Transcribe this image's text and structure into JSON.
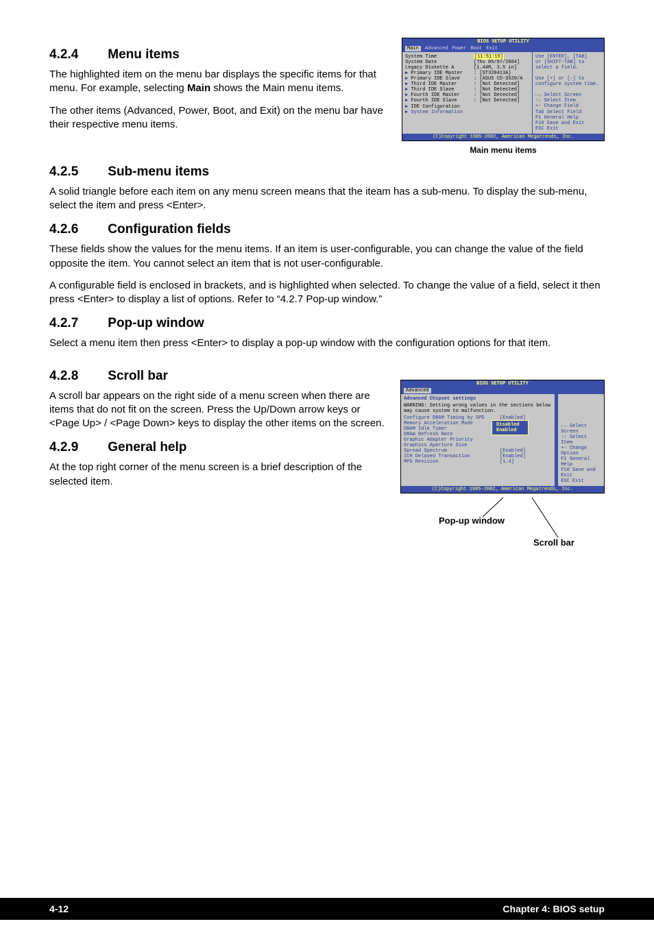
{
  "sections": {
    "s4_2_4": {
      "num": "4.2.4",
      "title": "Menu items",
      "p1": "The highlighted item on the menu bar  displays the specific items for that menu. For example, selecting ",
      "p1b": "Main",
      "p1c": " shows the Main menu items.",
      "p2": "The other items (Advanced, Power, Boot, and Exit) on the menu bar have their respective menu items."
    },
    "s4_2_5": {
      "num": "4.2.5",
      "title": "Sub-menu items",
      "p": "A solid triangle before each item on any menu screen means that the iteam has a sub-menu. To display the sub-menu, select the item and press <Enter>."
    },
    "s4_2_6": {
      "num": "4.2.6",
      "title": "Configuration fields",
      "p1": "These fields show the values for the menu items. If an item is user-configurable, you can change the value of the field opposite the item. You cannot select an item that is not user-configurable.",
      "p2": "A configurable field is enclosed in brackets, and is highlighted when selected. To change the value of a field, select it then press <Enter> to display a list of options. Refer to “4.2.7 Pop-up window.”"
    },
    "s4_2_7": {
      "num": "4.2.7",
      "title": "Pop-up window",
      "p": "Select a menu item then press <Enter> to display a pop-up window with the configuration options for that item."
    },
    "s4_2_8": {
      "num": "4.2.8",
      "title": "Scroll bar",
      "p": "A scroll bar appears on the right side of a menu screen when there are items that do not fit on the screen. Press the Up/Down arrow keys or <Page Up> / <Page Down> keys to display the other items on the screen."
    },
    "s4_2_9": {
      "num": "4.2.9",
      "title": "General help",
      "p": "At the top right corner of the menu screen is a brief description of the selected item."
    }
  },
  "bios1": {
    "title": "BIOS SETUP UTILITY",
    "tabs": [
      "Main",
      "Advanced",
      "Power",
      "Boot",
      "Exit"
    ],
    "active_tab": "Main",
    "left": [
      {
        "k": "System Time",
        "v": "[11:51:19]",
        "hl": true
      },
      {
        "k": "System Date",
        "v": "[Thu 05/07/2004]"
      },
      {
        "k": "Legacy Diskette A",
        "v": "[1.44M, 3.5 in]"
      },
      {
        "k": "Primary IDE Master",
        "v": ": [ST320413A]",
        "arrow": true
      },
      {
        "k": "Primary IDE Slave",
        "v": ": [ASUS CD-S520/A",
        "arrow": true
      },
      {
        "k": "Third IDE Master",
        "v": ": [Not Detected]",
        "arrow": true
      },
      {
        "k": "Third IDE Slave",
        "v": ": [Not Detected]",
        "arrow": true
      },
      {
        "k": "Fourth IDE Master",
        "v": ": [Not Detected]",
        "arrow": true
      },
      {
        "k": "Fourth IDE Slave",
        "v": ": [Not Detected]",
        "arrow": true
      },
      {
        "k": "IDE Configuration",
        "v": "",
        "arrow": true
      },
      {
        "k": "System Information",
        "v": "",
        "arrow": true,
        "blue": true
      }
    ],
    "right_top": [
      "Use [ENTER], [TAB]",
      "or [SHIFT-TAB] to",
      "select a field.",
      "",
      "Use [+] or [-] to",
      "configure system time."
    ],
    "right_nav": [
      "←→   Select Screen",
      "↑↓   Select Item",
      "+-   Change Field",
      "Tab  Select Field",
      "F1   General Help",
      "F10  Save and Exit",
      "ESC  Exit"
    ],
    "footer": "(C)Copyright 1985-2002, American Megatrends, Inc.",
    "caption": "Main menu items"
  },
  "bios2": {
    "title": "BIOS SETUP UTILITY",
    "tab": "Advanced",
    "header": "Advanced Chipset settings",
    "warn": "WARNING: Setting wrong values in the sections below may cause system to malfunction.",
    "rows": [
      {
        "k": "Configure DRAM Timing by SPD",
        "v": "[Enabled]"
      },
      {
        "k": "Memory Acceleration Mode",
        "v": "[Auto]"
      },
      {
        "k": "DRAM Idle Timer",
        "v": ""
      },
      {
        "k": "DRAm Refresh Rate",
        "v": ""
      },
      {
        "k": "Graphic Adapter Priority",
        "v": ""
      },
      {
        "k": "Graphics Aperture Size",
        "v": ""
      },
      {
        "k": "Spread Spectrum",
        "v": "[Enabled]"
      },
      {
        "k": "ICH Delayed Transaction",
        "v": "[Enabled]"
      },
      {
        "k": "MPS Revision",
        "v": "[1.4]"
      }
    ],
    "popup": [
      "Disabled",
      "Enabled"
    ],
    "right_nav": [
      "←→   Select Screen",
      "↑↓   Select Item",
      "+-   Change Option",
      "F1   General Help",
      "F10  Save and Exit",
      "ESC  Exit"
    ],
    "footer": "(C)Copyright 1985-2002, American Megatrends, Inc.",
    "caption_popup": "Pop-up window",
    "caption_scroll": "Scroll bar"
  },
  "footer": {
    "left": "4-12",
    "right": "Chapter 4: BIOS setup"
  }
}
